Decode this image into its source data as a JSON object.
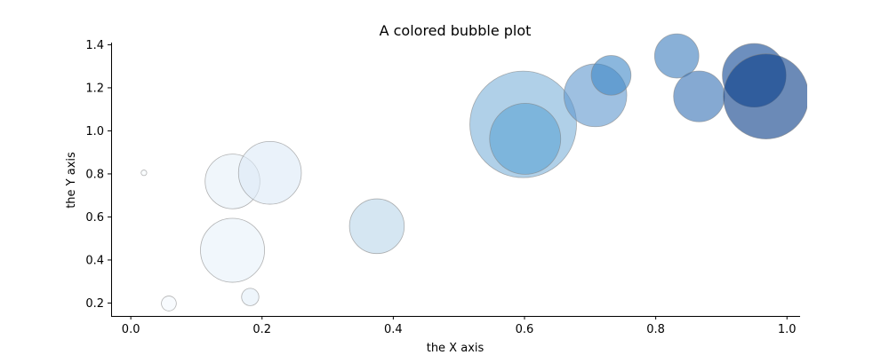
{
  "chart_data": {
    "type": "scatter",
    "title": "A colored bubble plot",
    "xlabel": "the X axis",
    "ylabel": "the Y axis",
    "xlim": [
      -0.03,
      1.02
    ],
    "ylim": [
      0.14,
      1.41
    ],
    "x_ticks": [
      "0.0",
      "0.2",
      "0.4",
      "0.6",
      "0.8",
      "1.0"
    ],
    "y_ticks": [
      "0.2",
      "0.4",
      "0.6",
      "0.8",
      "1.0",
      "1.2",
      "1.4"
    ],
    "grid": false,
    "colormap": "Blues",
    "points": [
      {
        "x": 0.02,
        "y": 0.805,
        "size": 10,
        "color": "#f7fbff"
      },
      {
        "x": 0.058,
        "y": 0.198,
        "size": 70,
        "color": "#f3f8fe"
      },
      {
        "x": 0.155,
        "y": 0.445,
        "size": 1300,
        "color": "#e8f1fa"
      },
      {
        "x": 0.155,
        "y": 0.765,
        "size": 950,
        "color": "#e6f0f9"
      },
      {
        "x": 0.182,
        "y": 0.228,
        "size": 95,
        "color": "#e3eef9"
      },
      {
        "x": 0.212,
        "y": 0.805,
        "size": 1250,
        "color": "#dce9f6"
      },
      {
        "x": 0.375,
        "y": 0.557,
        "size": 950,
        "color": "#b9d6ea"
      },
      {
        "x": 0.598,
        "y": 1.03,
        "size": 3600,
        "color": "#7cb1d8"
      },
      {
        "x": 0.601,
        "y": 0.963,
        "size": 1600,
        "color": "#5ca4d4"
      },
      {
        "x": 0.708,
        "y": 1.165,
        "size": 1250,
        "color": "#5e96cd"
      },
      {
        "x": 0.732,
        "y": 1.258,
        "size": 500,
        "color": "#3e87c7"
      },
      {
        "x": 0.832,
        "y": 1.348,
        "size": 620,
        "color": "#3b7cbc"
      },
      {
        "x": 0.866,
        "y": 1.16,
        "size": 820,
        "color": "#3470b4"
      },
      {
        "x": 0.95,
        "y": 1.258,
        "size": 1280,
        "color": "#0c4592"
      },
      {
        "x": 0.968,
        "y": 1.16,
        "size": 2300,
        "color": "#083c87"
      }
    ]
  }
}
